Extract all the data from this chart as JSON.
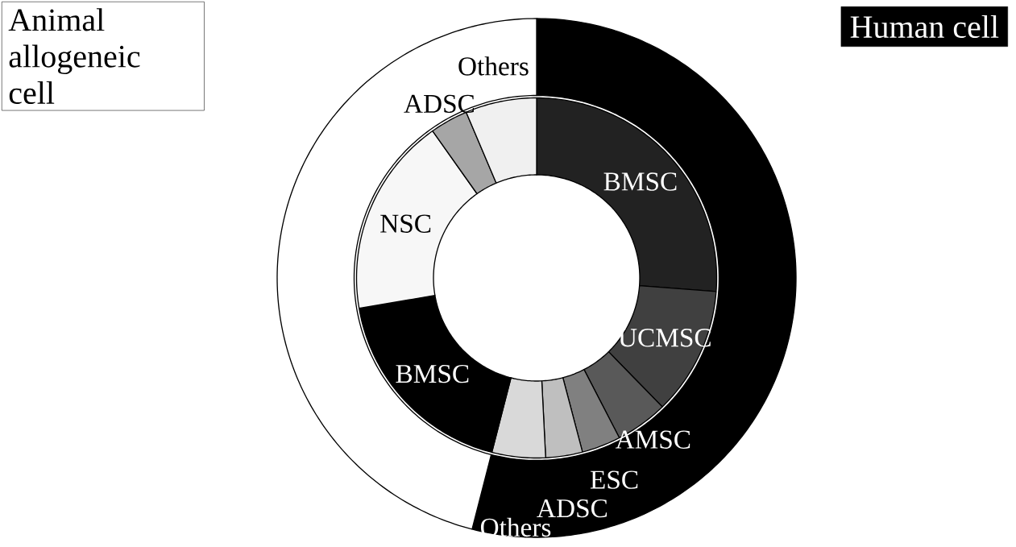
{
  "chart_data": [
    {
      "type": "donut",
      "categories": [
        "Human cell",
        "Animal allogeneic cell"
      ],
      "values": [
        54,
        46
      ],
      "colors": [
        "#000000",
        "#ffffff"
      ]
    },
    {
      "type": "donut",
      "categories": [
        "BMSC",
        "UCMSC",
        "AMSC",
        "ESC",
        "ADSC",
        "Others",
        "BMSC",
        "NSC",
        "ADSC",
        "Others"
      ],
      "values": [
        26.2,
        11.5,
        4.7,
        3.5,
        3.3,
        4.8,
        18.3,
        17.9,
        3.4,
        6.4
      ],
      "colors": [
        "#222222",
        "#404040",
        "#595959",
        "#808080",
        "#bfbfbf",
        "#d9d9d9",
        "#000000",
        "#f7f7f7",
        "#a6a6a6",
        "#f0f0f0"
      ]
    }
  ]
}
